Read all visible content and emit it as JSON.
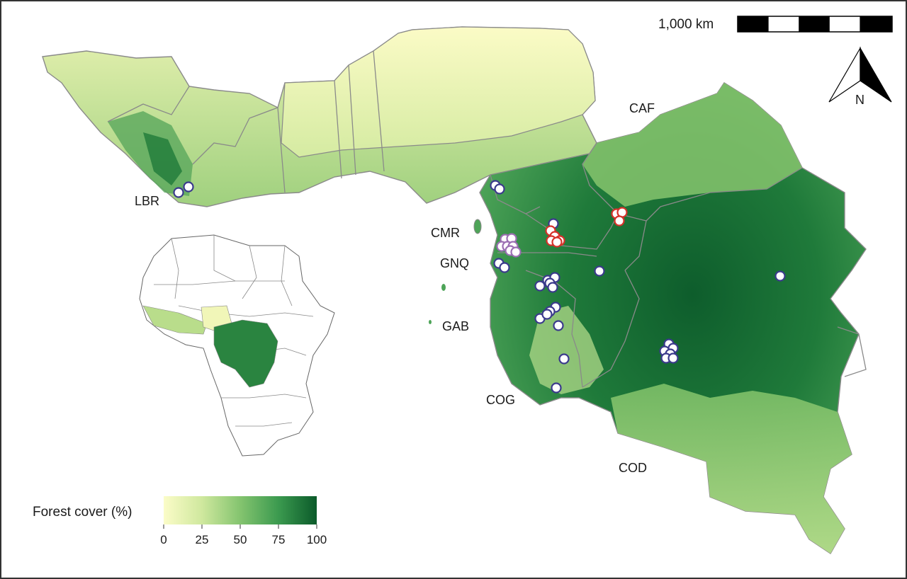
{
  "map": {
    "legend": {
      "title": "Forest cover (%)",
      "ticks": [
        "0",
        "25",
        "50",
        "75",
        "100"
      ],
      "color_low": "#fbfcc8",
      "color_mid": "#7cc06f",
      "color_high": "#0b5a2a"
    },
    "scale_bar": {
      "label": "1,000 km"
    },
    "north_arrow": {
      "label": "N"
    },
    "country_labels": {
      "lbr": "LBR",
      "cmr": "CMR",
      "gnq": "GNQ",
      "gab": "GAB",
      "cog": "COG",
      "caf": "CAF",
      "cod": "COD"
    },
    "colors": {
      "border": "#8a8a8a",
      "site_fill": "#ffffff",
      "site_stroke_blue": "#3b3a8c",
      "site_stroke_red": "#d6312a",
      "site_stroke_purple": "#9b6fb3"
    }
  }
}
